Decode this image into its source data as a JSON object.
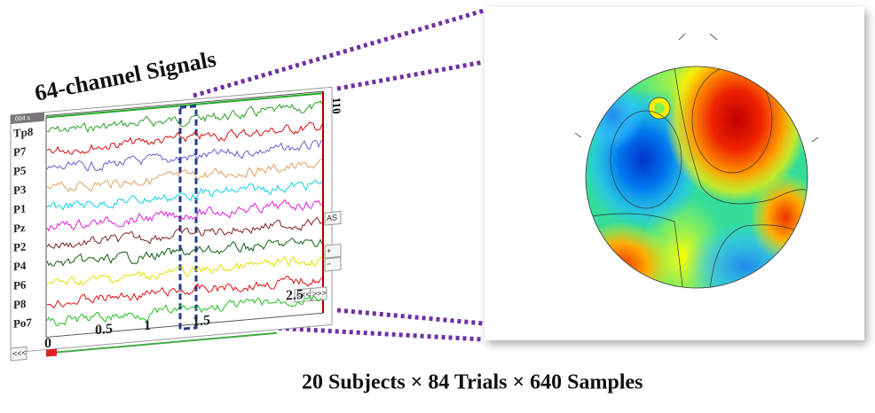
{
  "title": "64-channel Signals",
  "eeg": {
    "window": ".004 s",
    "scale": "110",
    "channels": [
      "Tp8",
      "P7",
      "P5",
      "P3",
      "P1",
      "Pz",
      "P2",
      "P4",
      "P6",
      "P8",
      "Po7"
    ],
    "time_ticks": [
      "0",
      "0.5",
      "1",
      "1.5",
      "2.5"
    ],
    "buttons": [
      "AS",
      "+",
      "−",
      "<<<",
      ">>>",
      "<<<"
    ]
  },
  "caption": "20 Subjects × 84 Trials × 640 Samples"
}
